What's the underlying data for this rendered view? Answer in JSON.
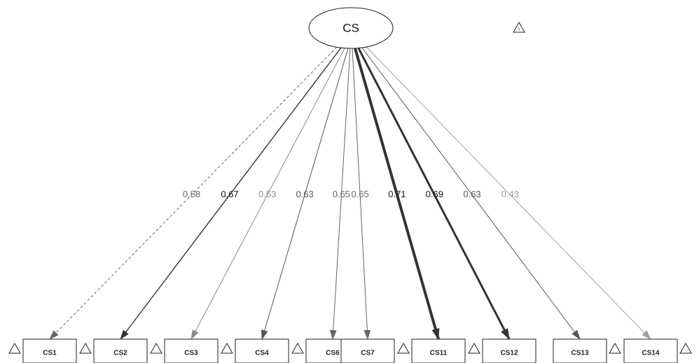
{
  "latent": {
    "label": "CS"
  },
  "indicators": [
    {
      "label": "CS1",
      "loading": "0.58",
      "color": "#666666",
      "dashed": true,
      "weight": 1
    },
    {
      "label": "CS2",
      "loading": "0.67",
      "color": "#333333",
      "dashed": false,
      "weight": 1.4
    },
    {
      "label": "CS3",
      "loading": "0.53",
      "color": "#8a8a8a",
      "dashed": false,
      "weight": 1
    },
    {
      "label": "CS4",
      "loading": "0.63",
      "color": "#555555",
      "dashed": false,
      "weight": 1
    },
    {
      "label": "CS6",
      "loading": "0.65",
      "color": "#666666",
      "dashed": false,
      "weight": 1
    },
    {
      "label": "CS7",
      "loading": "0.65",
      "color": "#666666",
      "dashed": false,
      "weight": 1
    },
    {
      "label": "CS11",
      "loading": "0.71",
      "color": "#333333",
      "dashed": false,
      "weight": 4
    },
    {
      "label": "CS12",
      "loading": "0.69",
      "color": "#333333",
      "dashed": false,
      "weight": 3
    },
    {
      "label": "CS13",
      "loading": "0.63",
      "color": "#555555",
      "dashed": false,
      "weight": 1
    },
    {
      "label": "CS14",
      "loading": "0.43",
      "color": "#a0a0a0",
      "dashed": false,
      "weight": 1
    }
  ]
}
